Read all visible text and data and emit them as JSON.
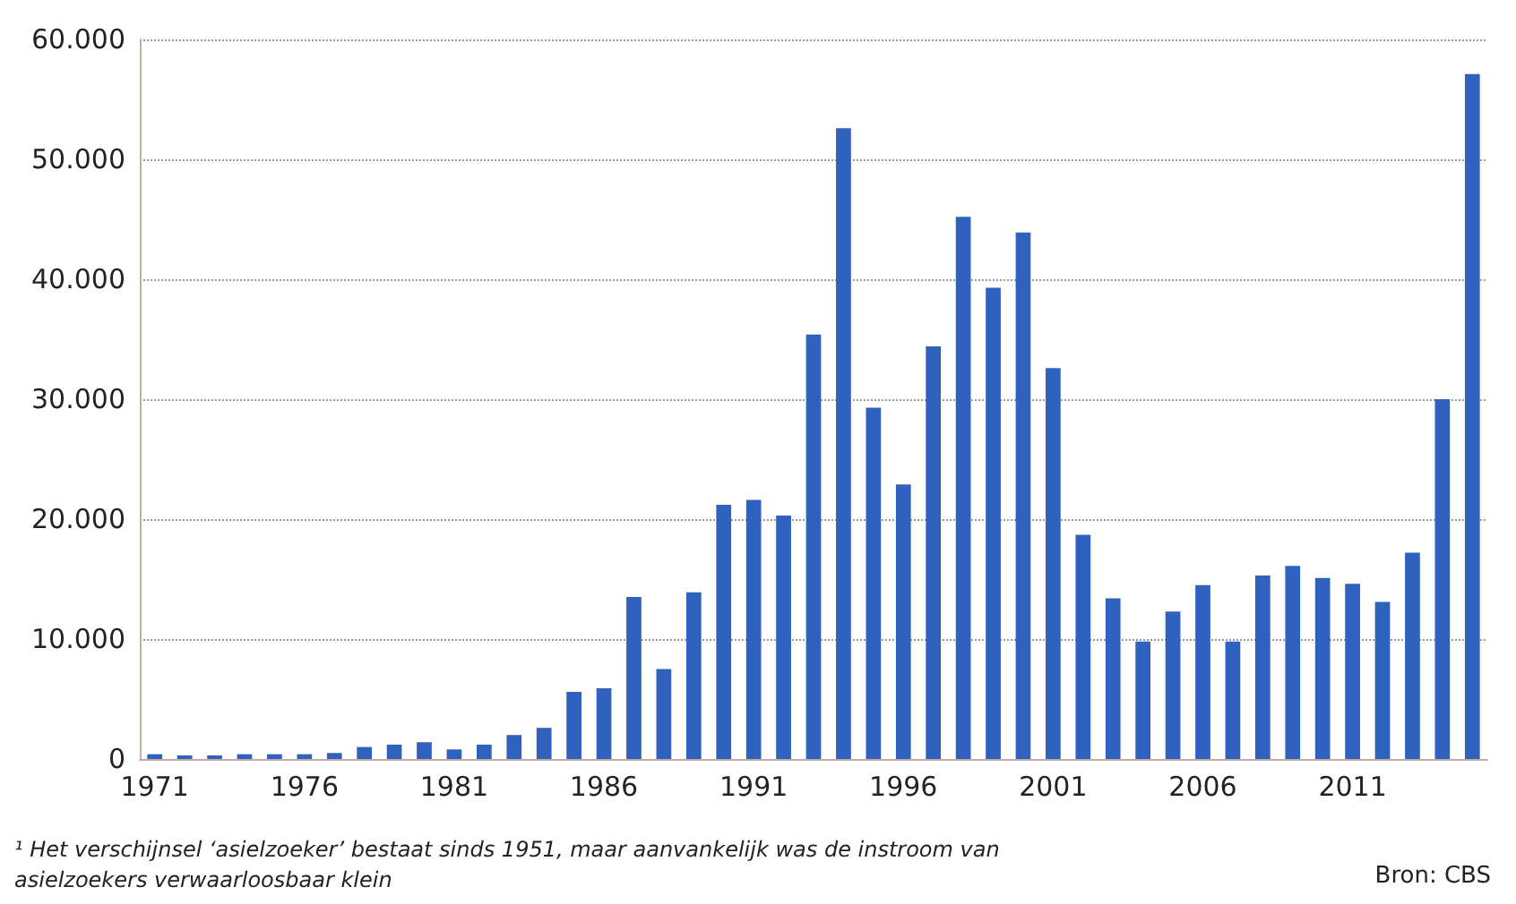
{
  "chart_data": {
    "type": "bar",
    "color": "#2f62be",
    "categories": [
      "1971",
      null,
      null,
      null,
      null,
      "1976",
      null,
      null,
      null,
      null,
      "1981",
      null,
      null,
      null,
      null,
      "1986",
      null,
      null,
      null,
      null,
      "1991",
      null,
      null,
      null,
      null,
      "1996",
      null,
      null,
      null,
      null,
      "2001",
      null,
      null,
      null,
      null,
      "2006",
      null,
      null,
      null,
      null,
      "2011",
      null,
      null,
      null,
      null
    ],
    "values": [
      400,
      300,
      300,
      400,
      400,
      400,
      500,
      1000,
      1200,
      1400,
      800,
      1200,
      2000,
      2600,
      5600,
      5900,
      13500,
      7500,
      13900,
      21200,
      21600,
      20300,
      35400,
      52600,
      29300,
      22900,
      34400,
      45200,
      39300,
      43900,
      32600,
      18700,
      13400,
      9800,
      12300,
      14500,
      9800,
      15300,
      16100,
      15100,
      14600,
      13100,
      17200,
      30000,
      57100
    ],
    "ylim": [
      0,
      60000
    ],
    "yticks": [
      {
        "value": 0,
        "label": "0"
      },
      {
        "value": 10000,
        "label": "10.000"
      },
      {
        "value": 20000,
        "label": "20.000"
      },
      {
        "value": 30000,
        "label": "30.000"
      },
      {
        "value": 40000,
        "label": "40.000"
      },
      {
        "value": 50000,
        "label": "50.000"
      },
      {
        "value": 60000,
        "label": "60.000"
      }
    ],
    "grid": "y",
    "annotations": [
      "¹ Het verschijnsel ‘asielzoeker’ bestaat sinds 1951, maar aanvankelijk was de instroom van asielzoekers verwaarloosbaar klein",
      "Bron: CBS"
    ]
  }
}
